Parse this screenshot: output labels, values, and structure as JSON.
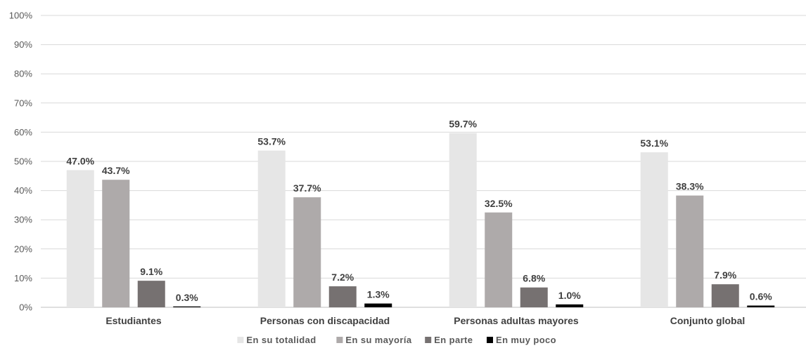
{
  "chart_data": {
    "type": "bar",
    "title": "",
    "xlabel": "",
    "ylabel": "",
    "ylim": [
      0,
      100
    ],
    "y_ticks": [
      "0%",
      "10%",
      "20%",
      "30%",
      "40%",
      "50%",
      "60%",
      "70%",
      "80%",
      "90%",
      "100%"
    ],
    "grid": true,
    "legend_position": "bottom",
    "categories": [
      "Estudiantes",
      "Personas con discapacidad",
      "Personas adultas mayores",
      "Conjunto global"
    ],
    "series": [
      {
        "name": "En su totalidad",
        "color": "#e6e6e6",
        "values": [
          47.0,
          53.7,
          59.7,
          53.1
        ],
        "labels": [
          "47.0%",
          "53.7%",
          "59.7%",
          "53.1%"
        ]
      },
      {
        "name": "En su mayoría",
        "color": "#aeaaaa",
        "values": [
          43.7,
          37.7,
          32.5,
          38.3
        ],
        "labels": [
          "43.7%",
          "37.7%",
          "32.5%",
          "38.3%"
        ]
      },
      {
        "name": "En parte",
        "color": "#767171",
        "values": [
          9.1,
          7.2,
          6.8,
          7.9
        ],
        "labels": [
          "9.1%",
          "7.2%",
          "6.8%",
          "7.9%"
        ]
      },
      {
        "name": "En muy poco",
        "color": "#000000",
        "values": [
          0.3,
          1.3,
          1.0,
          0.6
        ],
        "labels": [
          "0.3%",
          "1.3%",
          "1.0%",
          "0.6%"
        ]
      }
    ]
  }
}
